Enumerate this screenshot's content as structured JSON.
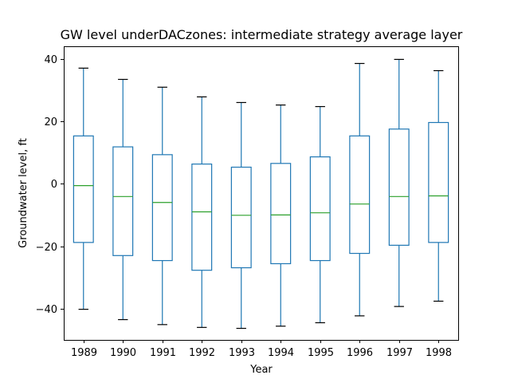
{
  "chart_data": {
    "type": "box",
    "title": "GW level underDACzones: intermediate strategy average layer",
    "xlabel": "Year",
    "ylabel": "Groundwater level, ft",
    "ylim": [
      -50,
      44
    ],
    "yticks": [
      -40,
      -20,
      0,
      20,
      40
    ],
    "grid": false,
    "colors": {
      "box": "#1f77b4",
      "median": "#2ca02c",
      "cap": "#000000",
      "frame": "#000000"
    },
    "categories": [
      "1989",
      "1990",
      "1991",
      "1992",
      "1993",
      "1994",
      "1995",
      "1996",
      "1997",
      "1998"
    ],
    "boxes": [
      {
        "whislo": -40.2,
        "q1": -18.8,
        "med": -0.6,
        "q3": 15.3,
        "whishi": 37.0
      },
      {
        "whislo": -43.5,
        "q1": -23.0,
        "med": -4.1,
        "q3": 11.8,
        "whishi": 33.4
      },
      {
        "whislo": -45.1,
        "q1": -24.6,
        "med": -6.0,
        "q3": 9.3,
        "whishi": 30.9
      },
      {
        "whislo": -46.0,
        "q1": -27.7,
        "med": -9.0,
        "q3": 6.3,
        "whishi": 27.8
      },
      {
        "whislo": -46.3,
        "q1": -26.9,
        "med": -10.1,
        "q3": 5.3,
        "whishi": 26.0
      },
      {
        "whislo": -45.6,
        "q1": -25.6,
        "med": -10.0,
        "q3": 6.5,
        "whishi": 25.2
      },
      {
        "whislo": -44.5,
        "q1": -24.6,
        "med": -9.3,
        "q3": 8.6,
        "whishi": 24.7
      },
      {
        "whislo": -42.3,
        "q1": -22.3,
        "med": -6.5,
        "q3": 15.3,
        "whishi": 38.5
      },
      {
        "whislo": -39.3,
        "q1": -19.7,
        "med": -4.1,
        "q3": 17.5,
        "whishi": 39.8
      },
      {
        "whislo": -37.6,
        "q1": -18.8,
        "med": -3.9,
        "q3": 19.6,
        "whishi": 36.2
      }
    ]
  }
}
